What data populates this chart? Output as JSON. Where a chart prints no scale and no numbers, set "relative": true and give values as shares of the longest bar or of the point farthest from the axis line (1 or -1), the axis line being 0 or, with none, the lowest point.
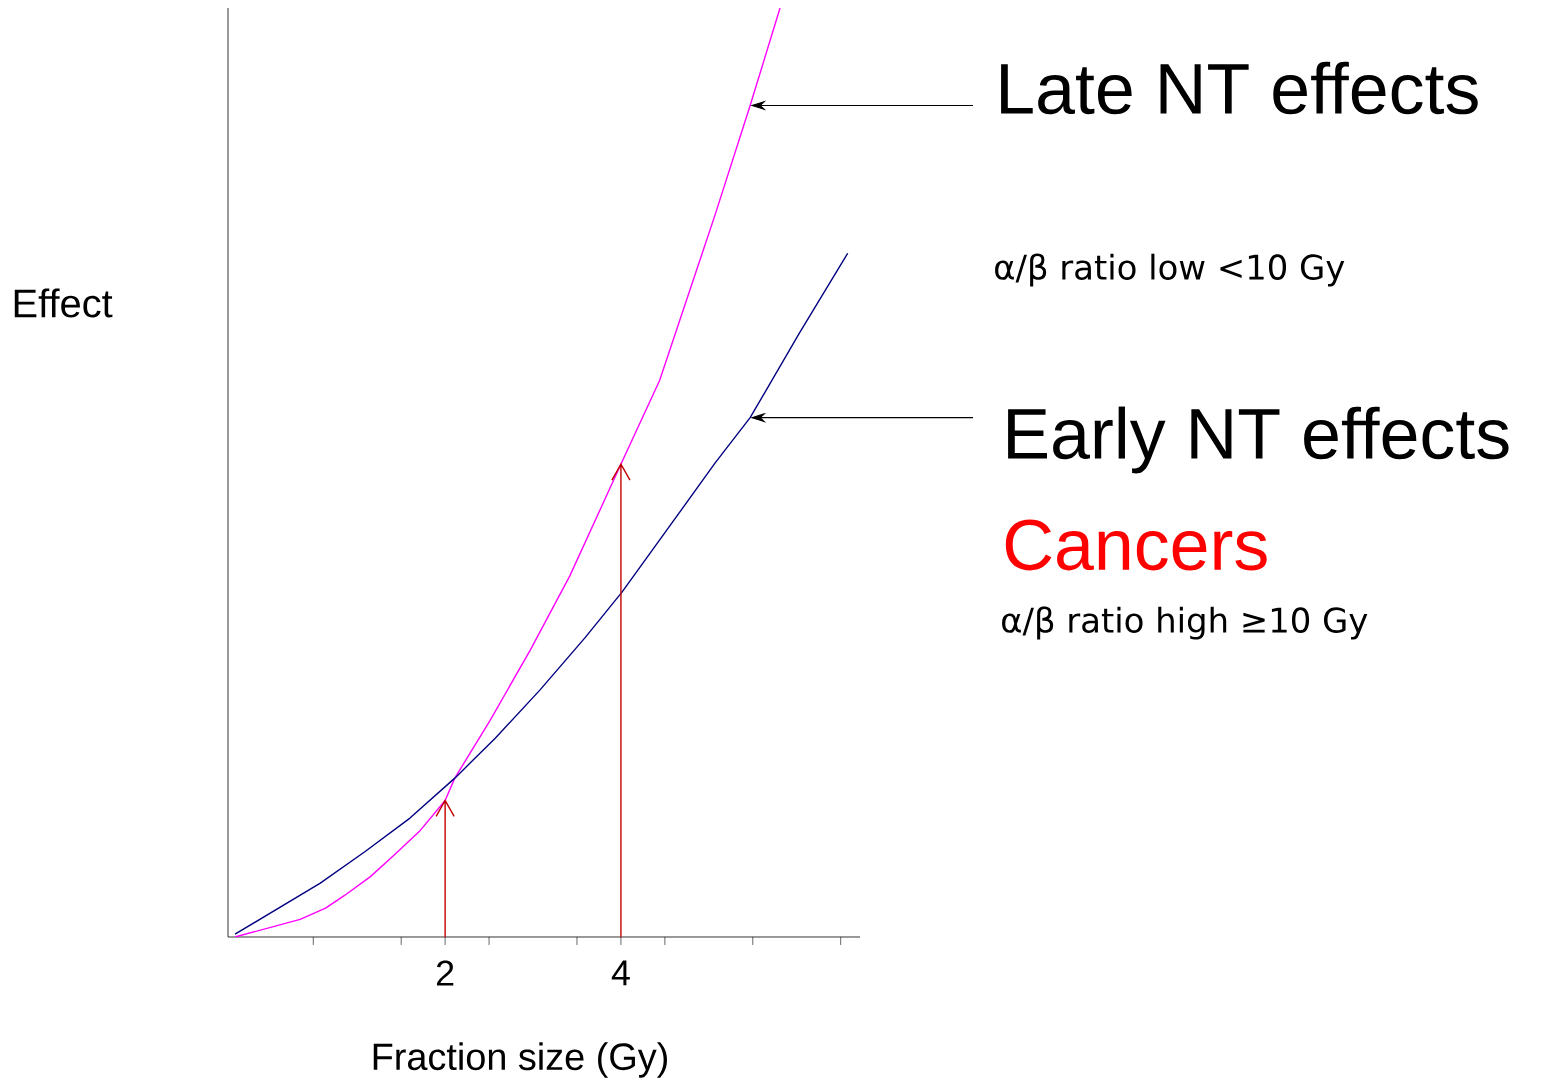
{
  "chart_data": {
    "type": "line",
    "relative": true,
    "xlabel": "Fraction size (Gy)",
    "ylabel": "Effect",
    "xlim": [
      -0.47,
      6.72
    ],
    "xticks": [
      {
        "value": 0.5,
        "label": null
      },
      {
        "value": 1.5,
        "label": null
      },
      2,
      {
        "value": 2.5,
        "label": null
      },
      {
        "value": 3.5,
        "label": null
      },
      4,
      {
        "value": 4.5,
        "label": null
      },
      {
        "value": 5.5,
        "label": null
      },
      {
        "value": 6.5,
        "label": null
      }
    ],
    "series": [
      {
        "color": "#ff00ff",
        "x": [
          -0.39,
          0.35,
          0.64,
          0.86,
          1.15,
          1.43,
          1.72,
          2.0,
          2.11,
          2.51,
          2.97,
          3.42,
          4.01,
          4.44,
          5.07,
          5.47,
          5.81
        ],
        "values": [
          0,
          0.019,
          0.031,
          0.045,
          0.065,
          0.089,
          0.115,
          0.147,
          0.171,
          0.233,
          0.309,
          0.389,
          0.511,
          0.599,
          0.777,
          0.895,
          1.0
        ]
      },
      {
        "color": "#000080",
        "x": [
          -0.39,
          0.58,
          1.09,
          1.6,
          2.11,
          2.57,
          3.08,
          3.59,
          4.01,
          4.56,
          5.07,
          5.47,
          6.03,
          6.58
        ],
        "values": [
          0.003,
          0.058,
          0.092,
          0.128,
          0.171,
          0.214,
          0.266,
          0.322,
          0.371,
          0.443,
          0.51,
          0.559,
          0.65,
          0.736
        ]
      }
    ],
    "annotations": [
      "Late NT effects",
      "α/β ratio low <10 Gy",
      "Early NT effects",
      "Cancers",
      "α/β ratio high ≥10 Gy"
    ]
  }
}
